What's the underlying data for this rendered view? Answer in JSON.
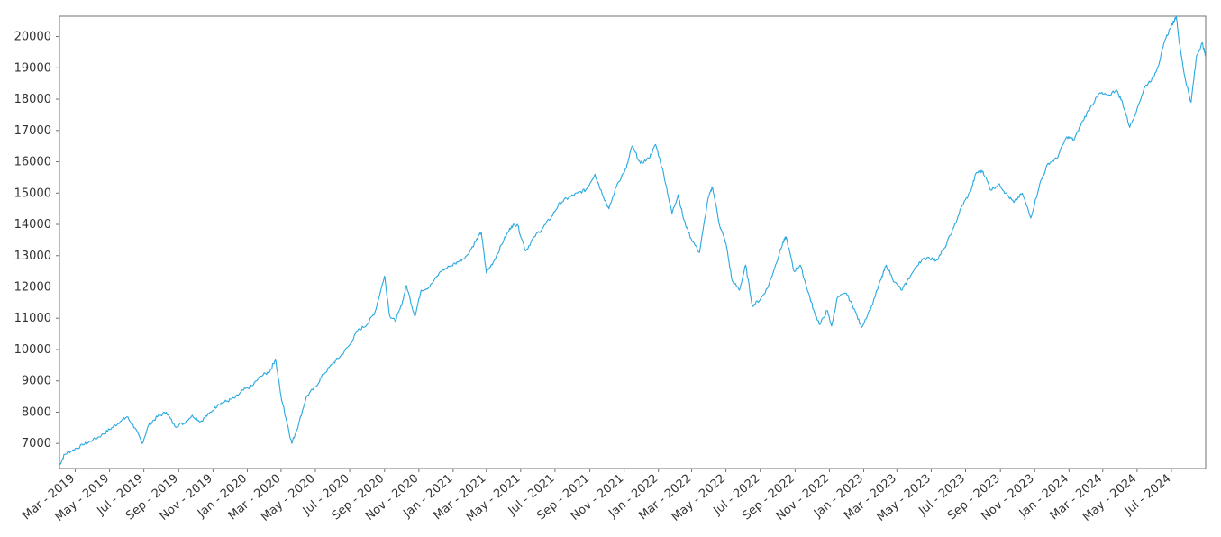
{
  "chart_data": {
    "type": "line",
    "title": "",
    "xlabel": "",
    "ylabel": "",
    "grid": false,
    "legend": "none",
    "line_color": "#29a8df",
    "ylim": [
      6200,
      20650
    ],
    "xlim": [
      "2019-02-01",
      "2024-08-31"
    ],
    "yticks": [
      7000,
      8000,
      9000,
      10000,
      11000,
      12000,
      13000,
      14000,
      15000,
      16000,
      17000,
      18000,
      19000,
      20000
    ],
    "yticklabels": [
      "7000",
      "8000",
      "9000",
      "10000",
      "11000",
      "12000",
      "13000",
      "14000",
      "15000",
      "16000",
      "17000",
      "18000",
      "19000",
      "20000"
    ],
    "xticks": [
      {
        "date": "2019-03-01",
        "label": "Mar - 2019"
      },
      {
        "date": "2019-05-01",
        "label": "May - 2019"
      },
      {
        "date": "2019-07-01",
        "label": "Jul - 2019"
      },
      {
        "date": "2019-09-01",
        "label": "Sep - 2019"
      },
      {
        "date": "2019-11-01",
        "label": "Nov - 2019"
      },
      {
        "date": "2020-01-01",
        "label": "Jan - 2020"
      },
      {
        "date": "2020-03-01",
        "label": "Mar - 2020"
      },
      {
        "date": "2020-05-01",
        "label": "May - 2020"
      },
      {
        "date": "2020-07-01",
        "label": "Jul - 2020"
      },
      {
        "date": "2020-09-01",
        "label": "Sep - 2020"
      },
      {
        "date": "2020-11-01",
        "label": "Nov - 2020"
      },
      {
        "date": "2021-01-01",
        "label": "Jan - 2021"
      },
      {
        "date": "2021-03-01",
        "label": "Mar - 2021"
      },
      {
        "date": "2021-05-01",
        "label": "May - 2021"
      },
      {
        "date": "2021-07-01",
        "label": "Jul - 2021"
      },
      {
        "date": "2021-09-01",
        "label": "Sep - 2021"
      },
      {
        "date": "2021-11-01",
        "label": "Nov - 2021"
      },
      {
        "date": "2022-01-01",
        "label": "Jan - 2022"
      },
      {
        "date": "2022-03-01",
        "label": "Mar - 2022"
      },
      {
        "date": "2022-05-01",
        "label": "May - 2022"
      },
      {
        "date": "2022-07-01",
        "label": "Jul - 2022"
      },
      {
        "date": "2022-09-01",
        "label": "Sep - 2022"
      },
      {
        "date": "2022-11-01",
        "label": "Nov - 2022"
      },
      {
        "date": "2023-01-01",
        "label": "Jan - 2023"
      },
      {
        "date": "2023-03-01",
        "label": "Mar - 2023"
      },
      {
        "date": "2023-05-01",
        "label": "May - 2023"
      },
      {
        "date": "2023-07-01",
        "label": "Jul - 2023"
      },
      {
        "date": "2023-09-01",
        "label": "Sep - 2023"
      },
      {
        "date": "2023-11-01",
        "label": "Nov - 2023"
      },
      {
        "date": "2024-01-01",
        "label": "Jan - 2024"
      },
      {
        "date": "2024-03-01",
        "label": "Mar - 2024"
      },
      {
        "date": "2024-05-01",
        "label": "May - 2024"
      },
      {
        "date": "2024-07-01",
        "label": "Jul - 2024"
      }
    ],
    "series": [
      {
        "values": [
          [
            "2019-02-01",
            6300
          ],
          [
            "2019-02-10",
            6650
          ],
          [
            "2019-02-25",
            6800
          ],
          [
            "2019-03-15",
            6950
          ],
          [
            "2019-04-01",
            7100
          ],
          [
            "2019-04-20",
            7300
          ],
          [
            "2019-05-05",
            7500
          ],
          [
            "2019-05-20",
            7700
          ],
          [
            "2019-06-01",
            7850
          ],
          [
            "2019-06-15",
            7500
          ],
          [
            "2019-06-28",
            7000
          ],
          [
            "2019-07-10",
            7600
          ],
          [
            "2019-07-25",
            7850
          ],
          [
            "2019-08-10",
            8000
          ],
          [
            "2019-08-25",
            7550
          ],
          [
            "2019-09-10",
            7650
          ],
          [
            "2019-09-25",
            7900
          ],
          [
            "2019-10-10",
            7700
          ],
          [
            "2019-10-25",
            7950
          ],
          [
            "2019-11-10",
            8250
          ],
          [
            "2019-11-25",
            8350
          ],
          [
            "2019-12-10",
            8450
          ],
          [
            "2019-12-25",
            8700
          ],
          [
            "2020-01-10",
            8850
          ],
          [
            "2020-01-25",
            9150
          ],
          [
            "2020-02-10",
            9300
          ],
          [
            "2020-02-20",
            9700
          ],
          [
            "2020-03-01",
            8500
          ],
          [
            "2020-03-10",
            7800
          ],
          [
            "2020-03-20",
            7000
          ],
          [
            "2020-04-01",
            7600
          ],
          [
            "2020-04-15",
            8500
          ],
          [
            "2020-05-01",
            8800
          ],
          [
            "2020-05-15",
            9200
          ],
          [
            "2020-06-01",
            9550
          ],
          [
            "2020-06-15",
            9800
          ],
          [
            "2020-07-01",
            10150
          ],
          [
            "2020-07-15",
            10600
          ],
          [
            "2020-08-01",
            10800
          ],
          [
            "2020-08-15",
            11200
          ],
          [
            "2020-09-01",
            12350
          ],
          [
            "2020-09-10",
            11100
          ],
          [
            "2020-09-20",
            10900
          ],
          [
            "2020-10-01",
            11400
          ],
          [
            "2020-10-10",
            12050
          ],
          [
            "2020-10-25",
            11050
          ],
          [
            "2020-11-05",
            11900
          ],
          [
            "2020-11-20",
            12000
          ],
          [
            "2020-12-10",
            12500
          ],
          [
            "2020-12-25",
            12650
          ],
          [
            "2021-01-10",
            12800
          ],
          [
            "2021-01-25",
            13000
          ],
          [
            "2021-02-10",
            13450
          ],
          [
            "2021-02-20",
            13750
          ],
          [
            "2021-03-01",
            12450
          ],
          [
            "2021-03-15",
            12850
          ],
          [
            "2021-04-01",
            13500
          ],
          [
            "2021-04-15",
            13950
          ],
          [
            "2021-04-25",
            14000
          ],
          [
            "2021-05-10",
            13150
          ],
          [
            "2021-05-25",
            13600
          ],
          [
            "2021-06-10",
            13900
          ],
          [
            "2021-06-25",
            14250
          ],
          [
            "2021-07-10",
            14700
          ],
          [
            "2021-07-25",
            14850
          ],
          [
            "2021-08-10",
            15000
          ],
          [
            "2021-08-25",
            15100
          ],
          [
            "2021-09-10",
            15600
          ],
          [
            "2021-09-25",
            14900
          ],
          [
            "2021-10-05",
            14500
          ],
          [
            "2021-10-20",
            15300
          ],
          [
            "2021-11-05",
            15800
          ],
          [
            "2021-11-15",
            16500
          ],
          [
            "2021-11-30",
            15950
          ],
          [
            "2021-12-15",
            16100
          ],
          [
            "2021-12-27",
            16550
          ],
          [
            "2022-01-10",
            15650
          ],
          [
            "2022-01-25",
            14350
          ],
          [
            "2022-02-05",
            14950
          ],
          [
            "2022-02-15",
            14150
          ],
          [
            "2022-02-28",
            13550
          ],
          [
            "2022-03-15",
            13100
          ],
          [
            "2022-03-30",
            14800
          ],
          [
            "2022-04-07",
            15200
          ],
          [
            "2022-04-20",
            13950
          ],
          [
            "2022-05-01",
            13400
          ],
          [
            "2022-05-12",
            12200
          ],
          [
            "2022-05-25",
            11900
          ],
          [
            "2022-06-05",
            12700
          ],
          [
            "2022-06-17",
            11400
          ],
          [
            "2022-07-01",
            11600
          ],
          [
            "2022-07-15",
            12000
          ],
          [
            "2022-07-28",
            12700
          ],
          [
            "2022-08-10",
            13400
          ],
          [
            "2022-08-16",
            13600
          ],
          [
            "2022-08-30",
            12500
          ],
          [
            "2022-09-10",
            12700
          ],
          [
            "2022-09-25",
            11800
          ],
          [
            "2022-10-05",
            11200
          ],
          [
            "2022-10-15",
            10800
          ],
          [
            "2022-10-28",
            11250
          ],
          [
            "2022-11-05",
            10750
          ],
          [
            "2022-11-15",
            11650
          ],
          [
            "2022-12-01",
            11800
          ],
          [
            "2022-12-15",
            11300
          ],
          [
            "2022-12-28",
            10700
          ],
          [
            "2023-01-15",
            11400
          ],
          [
            "2023-02-01",
            12250
          ],
          [
            "2023-02-10",
            12700
          ],
          [
            "2023-02-25",
            12150
          ],
          [
            "2023-03-10",
            11900
          ],
          [
            "2023-03-25",
            12350
          ],
          [
            "2023-04-10",
            12800
          ],
          [
            "2023-04-25",
            12950
          ],
          [
            "2023-05-10",
            12850
          ],
          [
            "2023-05-25",
            13250
          ],
          [
            "2023-06-10",
            13900
          ],
          [
            "2023-06-25",
            14600
          ],
          [
            "2023-07-10",
            15050
          ],
          [
            "2023-07-20",
            15650
          ],
          [
            "2023-08-01",
            15700
          ],
          [
            "2023-08-15",
            15100
          ],
          [
            "2023-08-30",
            15300
          ],
          [
            "2023-09-10",
            15000
          ],
          [
            "2023-09-25",
            14700
          ],
          [
            "2023-10-10",
            15000
          ],
          [
            "2023-10-25",
            14200
          ],
          [
            "2023-11-10",
            15300
          ],
          [
            "2023-11-25",
            15950
          ],
          [
            "2023-12-10",
            16100
          ],
          [
            "2023-12-28",
            16800
          ],
          [
            "2024-01-10",
            16700
          ],
          [
            "2024-01-25",
            17300
          ],
          [
            "2024-02-10",
            17800
          ],
          [
            "2024-02-25",
            18200
          ],
          [
            "2024-03-10",
            18100
          ],
          [
            "2024-03-25",
            18300
          ],
          [
            "2024-04-05",
            17900
          ],
          [
            "2024-04-18",
            17100
          ],
          [
            "2024-05-01",
            17700
          ],
          [
            "2024-05-15",
            18400
          ],
          [
            "2024-05-30",
            18700
          ],
          [
            "2024-06-10",
            19200
          ],
          [
            "2024-06-20",
            19900
          ],
          [
            "2024-07-01",
            20350
          ],
          [
            "2024-07-10",
            20650
          ],
          [
            "2024-07-15",
            19800
          ],
          [
            "2024-07-25",
            18700
          ],
          [
            "2024-08-05",
            17900
          ],
          [
            "2024-08-15",
            19400
          ],
          [
            "2024-08-25",
            19800
          ],
          [
            "2024-08-31",
            19350
          ]
        ]
      }
    ]
  }
}
